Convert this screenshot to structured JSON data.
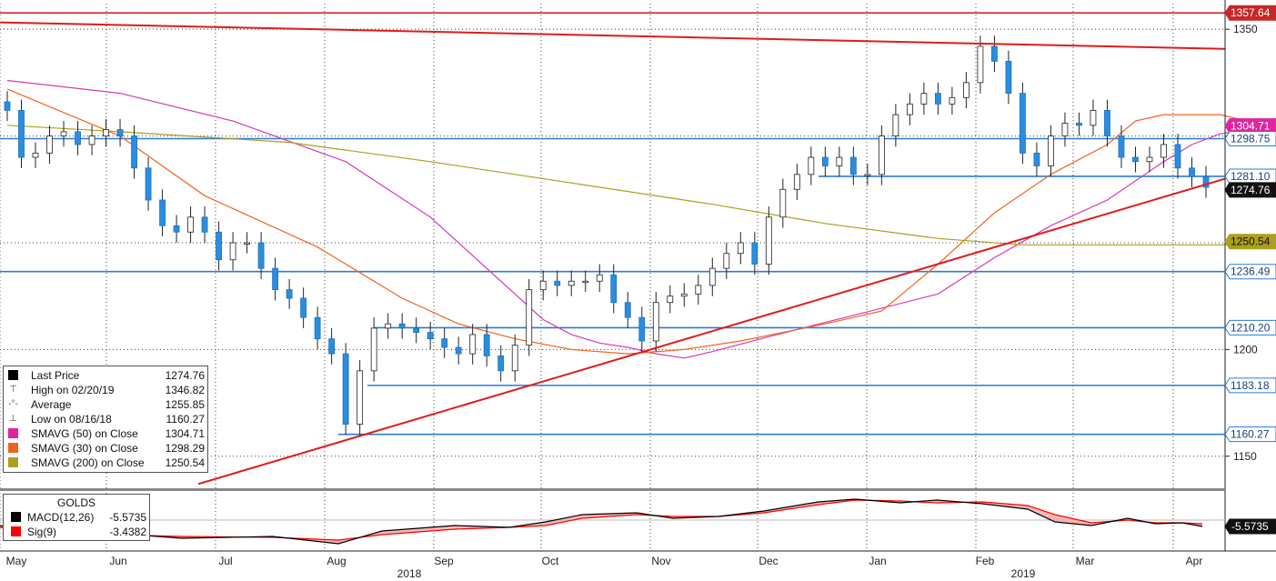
{
  "chart_data": [
    {
      "type": "candlestick",
      "title": "",
      "ylim": [
        1135,
        1362
      ],
      "y_ticks": [
        1150,
        1200,
        1250,
        1300,
        1350
      ],
      "y_tick_labels": [
        "1150",
        "1200",
        "",
        "",
        "1350"
      ],
      "x_months": [
        "May",
        "Jun",
        "Jul",
        "Aug",
        "Sep",
        "Oct",
        "Nov",
        "Dec",
        "Jan",
        "Feb",
        "Mar",
        "Apr"
      ],
      "x_years": [
        "2018",
        "2019"
      ],
      "grid": true,
      "legend_position": "bottom-left",
      "weekly_close_approx": [
        1312,
        1290,
        1292,
        1300,
        1302,
        1296,
        1300,
        1303,
        1300,
        1285,
        1270,
        1258,
        1255,
        1262,
        1255,
        1242,
        1250,
        1250,
        1238,
        1228,
        1224,
        1215,
        1205,
        1198,
        1165,
        1190,
        1210,
        1212,
        1210,
        1208,
        1205,
        1201,
        1198,
        1207,
        1197,
        1190,
        1202,
        1228,
        1232,
        1230,
        1232,
        1232,
        1235,
        1222,
        1215,
        1204,
        1222,
        1225,
        1226,
        1230,
        1238,
        1245,
        1250,
        1240,
        1262,
        1275,
        1282,
        1290,
        1286,
        1290,
        1282,
        1282,
        1300,
        1310,
        1315,
        1320,
        1315,
        1318,
        1325,
        1342,
        1335,
        1320,
        1292,
        1286,
        1300,
        1306,
        1305,
        1312,
        1300,
        1290,
        1288,
        1290,
        1296,
        1285,
        1281,
        1276
      ],
      "series": [
        {
          "name": "SMAVG (50) on Close",
          "color": "#d63ab4",
          "points": [
            [
              0,
              1326
            ],
            [
              8,
              1320
            ],
            [
              16,
              1307
            ],
            [
              24,
              1288
            ],
            [
              30,
              1262
            ],
            [
              34,
              1238
            ],
            [
              38,
              1214
            ],
            [
              40,
              1207
            ],
            [
              42,
              1203
            ],
            [
              44,
              1201
            ],
            [
              46,
              1198
            ],
            [
              48,
              1196
            ],
            [
              50,
              1199
            ],
            [
              54,
              1206
            ],
            [
              60,
              1216
            ],
            [
              66,
              1226
            ],
            [
              70,
              1243
            ],
            [
              74,
              1258
            ],
            [
              78,
              1270
            ],
            [
              82,
              1288
            ],
            [
              84,
              1296
            ],
            [
              86,
              1301
            ],
            [
              88,
              1303
            ],
            [
              90,
              1304
            ],
            [
              92,
              1304
            ],
            [
              93,
              1304.71
            ]
          ]
        },
        {
          "name": "SMAVG (30) on Close",
          "color": "#f0641e",
          "points": [
            [
              0,
              1322
            ],
            [
              8,
              1300
            ],
            [
              14,
              1272
            ],
            [
              22,
              1248
            ],
            [
              28,
              1224
            ],
            [
              32,
              1212
            ],
            [
              36,
              1205
            ],
            [
              40,
              1200
            ],
            [
              44,
              1198
            ],
            [
              48,
              1200
            ],
            [
              52,
              1204
            ],
            [
              58,
              1212
            ],
            [
              62,
              1218
            ],
            [
              66,
              1240
            ],
            [
              70,
              1264
            ],
            [
              74,
              1282
            ],
            [
              78,
              1296
            ],
            [
              80,
              1307
            ],
            [
              82,
              1310
            ],
            [
              84,
              1310
            ],
            [
              86,
              1310
            ],
            [
              88,
              1307
            ],
            [
              90,
              1302
            ],
            [
              92,
              1300
            ],
            [
              93,
              1298.29
            ]
          ]
        },
        {
          "name": "SMAVG (200) on Close",
          "color": "#aaa01e",
          "points": [
            [
              0,
              1305
            ],
            [
              8,
              1302
            ],
            [
              20,
              1297
            ],
            [
              30,
              1288
            ],
            [
              40,
              1278
            ],
            [
              50,
              1268
            ],
            [
              58,
              1259
            ],
            [
              66,
              1252
            ],
            [
              72,
              1249
            ],
            [
              80,
              1249
            ],
            [
              86,
              1249
            ],
            [
              90,
              1250
            ],
            [
              93,
              1250.54
            ]
          ]
        }
      ],
      "levels": [
        {
          "value": 1357.64,
          "label": "1357.64",
          "color": "#c62828",
          "style": "solid"
        },
        {
          "value": 1350,
          "label": "1350",
          "color": "#555555",
          "style": "dotted"
        },
        {
          "value": 1304.71,
          "label": "1304.71",
          "color": "#d63ab4",
          "style": "none"
        },
        {
          "value": 1298.75,
          "label": "1298.75",
          "color": "#2a7bd8",
          "style": "solid"
        },
        {
          "value": 1281.1,
          "label": "1281.10",
          "color": "#2a7bd8",
          "style": "solid"
        },
        {
          "value": 1274.76,
          "label": "1274.76",
          "color": "#111111",
          "style": "none"
        },
        {
          "value": 1250.54,
          "label": "1250.54",
          "color": "#aaa01e",
          "style": "none"
        },
        {
          "value": 1236.49,
          "label": "1236.49",
          "color": "#2a7bd8",
          "style": "solid"
        },
        {
          "value": 1210.2,
          "label": "1210.20",
          "color": "#2a7bd8",
          "style": "solid"
        },
        {
          "value": 1183.18,
          "label": "1183.18",
          "color": "#2a7bd8",
          "style": "solid"
        },
        {
          "value": 1160.27,
          "label": "1160.27",
          "color": "#2a7bd8",
          "style": "solid"
        }
      ]
    },
    {
      "type": "line",
      "title": "GOLDS",
      "series": [
        {
          "name": "MACD(12,26)",
          "value": -5.5735
        },
        {
          "name": "Sig(9)",
          "value": -3.4382
        }
      ],
      "right_label": "-5.5735"
    }
  ],
  "legend": [
    {
      "symbol": "square-black",
      "label": "Last Price",
      "value": "1274.76"
    },
    {
      "symbol": "high-marker",
      "label": "High on 02/20/19",
      "value": "1346.82"
    },
    {
      "symbol": "average-marker",
      "label": "Average",
      "value": "1255.85"
    },
    {
      "symbol": "low-marker",
      "label": "Low on 08/16/18",
      "value": "1160.27"
    },
    {
      "symbol": "square-magenta",
      "label": "SMAVG (50)  on Close",
      "value": "1304.71"
    },
    {
      "symbol": "square-orange",
      "label": "SMAVG (30)  on Close",
      "value": "1298.29"
    },
    {
      "symbol": "square-olive",
      "label": "SMAVG (200)  on Close",
      "value": "1250.54"
    }
  ],
  "macd_legend": {
    "title": "GOLDS",
    "rows": [
      {
        "label": "MACD(12,26)",
        "value": "-5.5735",
        "color": "#000000"
      },
      {
        "label": "Sig(9)",
        "value": "-3.4382",
        "color": "#ff0000"
      }
    ]
  },
  "colors": {
    "candle_up": "#ffffff",
    "candle_down": "#2a8ee0",
    "trendline": "#e01b1b",
    "grid": "#444444"
  }
}
